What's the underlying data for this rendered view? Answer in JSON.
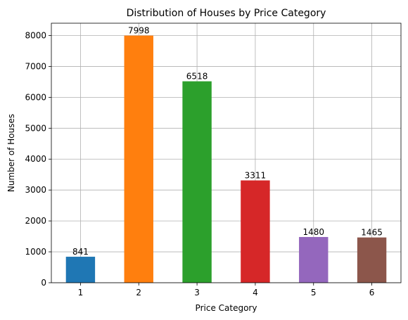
{
  "chart_data": {
    "type": "bar",
    "title": "Distribution of Houses by Price Category",
    "xlabel": "Price Category",
    "ylabel": "Number of Houses",
    "categories": [
      "1",
      "2",
      "3",
      "4",
      "5",
      "6"
    ],
    "values": [
      841,
      7998,
      6518,
      3311,
      1480,
      1465
    ],
    "data_labels": [
      "841",
      "7998",
      "6518",
      "3311",
      "1480",
      "1465"
    ],
    "colors": [
      "#1f77b4",
      "#ff7f0e",
      "#2ca02c",
      "#d62728",
      "#9467bd",
      "#8c564b"
    ],
    "yticks": [
      0,
      1000,
      2000,
      3000,
      4000,
      5000,
      6000,
      7000,
      8000
    ],
    "ytick_labels": [
      "0",
      "1000",
      "2000",
      "3000",
      "4000",
      "5000",
      "6000",
      "7000",
      "8000"
    ],
    "ylim": [
      0,
      8397.9
    ],
    "grid": true,
    "legend": "none"
  }
}
